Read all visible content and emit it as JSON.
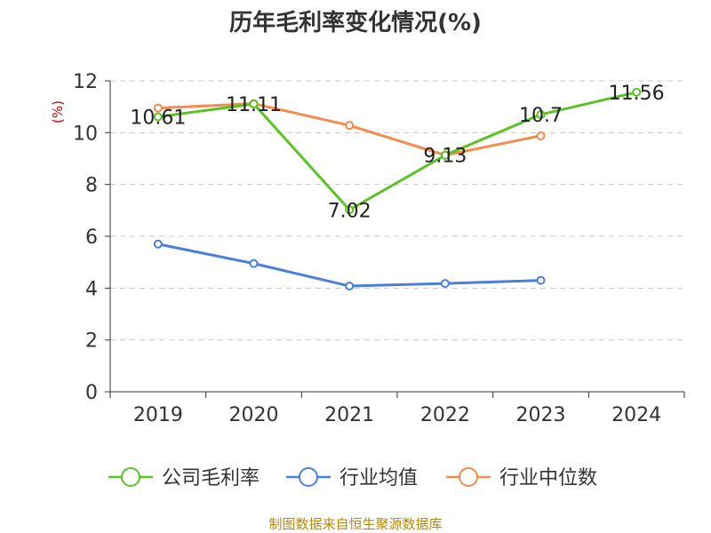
{
  "chart_data": {
    "type": "line",
    "title": "历年毛利率变化情况(%)",
    "ylabel": "(%)",
    "xlabel": "",
    "categories": [
      "2019",
      "2020",
      "2021",
      "2022",
      "2023",
      "2024"
    ],
    "ylim": [
      0,
      12
    ],
    "yticks": [
      0,
      2,
      4,
      6,
      8,
      10,
      12
    ],
    "grid": true,
    "legend_position": "bottom",
    "series": [
      {
        "name": "公司毛利率",
        "color": "#5bc225",
        "values": [
          10.61,
          11.11,
          7.02,
          9.13,
          10.7,
          11.56
        ],
        "labels": [
          "10.61",
          "11.11",
          "7.02",
          "9.13",
          "10.7",
          "11.56"
        ]
      },
      {
        "name": "行业均值",
        "color": "#4a7fdb",
        "values": [
          5.7,
          4.95,
          4.08,
          4.18,
          4.3,
          null
        ]
      },
      {
        "name": "行业中位数",
        "color": "#f58b4c",
        "values": [
          10.95,
          11.12,
          10.28,
          9.13,
          9.88,
          null
        ]
      }
    ]
  },
  "source": "制图数据来自恒生聚源数据库"
}
